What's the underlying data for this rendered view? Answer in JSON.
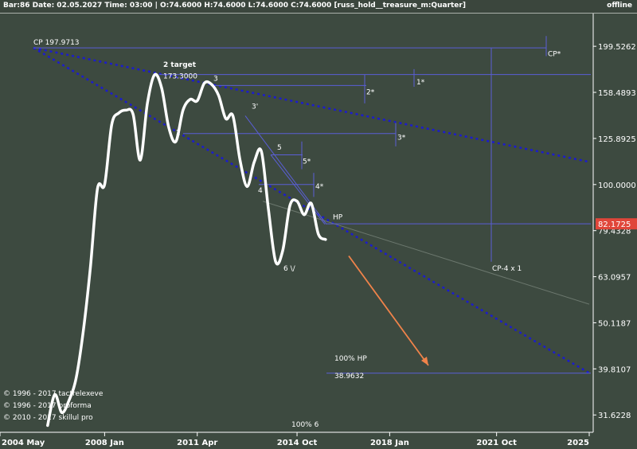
{
  "header": {
    "title": "Bar:86 Date: 02.05.2027 Time: 03:00 | O:74.6000 H:74.6000 L:74.6000 C:74.6000 [russ_hold__treasure_m:Quarter]",
    "status": "offline"
  },
  "colors": {
    "background": "#3d4a40",
    "price_line": "#ffffff",
    "dotted_trend": "#1c1ccc",
    "projection_lines": "#5a5ed6",
    "arrow": "#f0834a",
    "price_tag": "#e0463a"
  },
  "annotations": {
    "cp_label": "CP 197.9713",
    "target_label": "2 target",
    "target_value": "173.3000",
    "labels": [
      "2",
      "3",
      "3'",
      "4",
      "5",
      "4*",
      "5*",
      "6 \\/",
      "HP",
      "CP*",
      "1*",
      "2*",
      "3*",
      "CP-4 x 1"
    ],
    "hp100_label": "100% HP",
    "hp100_value": "38.9632",
    "pct6_label": "100% 6"
  },
  "price_tag": "82.1725",
  "copyright": [
    "© 1996 - 2017 tactrelexeve",
    "© 1996 - 2017 proforma",
    "© 2010 - 2017 skillul pro"
  ],
  "chart_data": {
    "type": "line",
    "title": "",
    "xlabel": "",
    "ylabel": "",
    "y_scale": "log",
    "ylim": [
      29,
      235
    ],
    "x_ticks": [
      "2004 May",
      "2008 Jan",
      "2011 Apr",
      "2014 Oct",
      "2018 Jan",
      "2021 Oct",
      "2025"
    ],
    "y_ticks": [
      "199.5262",
      "158.4893",
      "125.8925",
      "100.0000",
      "79.4328",
      "63.0957",
      "50.1187",
      "39.8107",
      "31.6228"
    ],
    "series": [
      {
        "values": [
          [
            "2006 Jan",
            30
          ],
          [
            "2006 Apr",
            35
          ],
          [
            "2006 Jul",
            32
          ],
          [
            "2006 Oct",
            34
          ],
          [
            "2007 Jan",
            38
          ],
          [
            "2007 Apr",
            48
          ],
          [
            "2007 Jul",
            66
          ],
          [
            "2007 Oct",
            98
          ],
          [
            "2008 Jan",
            100
          ],
          [
            "2008 Apr",
            135
          ],
          [
            "2008 Jul",
            143
          ],
          [
            "2008 Oct",
            145
          ],
          [
            "2009 Jan",
            142
          ],
          [
            "2009 Apr",
            113
          ],
          [
            "2009 Jul",
            150
          ],
          [
            "2009 Oct",
            173
          ],
          [
            "2010 Jan",
            162
          ],
          [
            "2010 Apr",
            133
          ],
          [
            "2010 Jul",
            124
          ],
          [
            "2010 Oct",
            145
          ],
          [
            "2011 Jan",
            153
          ],
          [
            "2011 Apr",
            152
          ],
          [
            "2011 Jul",
            166
          ],
          [
            "2011 Oct",
            165
          ],
          [
            "2012 Jan",
            156
          ],
          [
            "2012 Apr",
            139
          ],
          [
            "2012 Jul",
            141
          ],
          [
            "2012 Oct",
            113
          ],
          [
            "2013 Jan",
            99
          ],
          [
            "2013 Apr",
            112
          ],
          [
            "2013 Jul",
            118
          ],
          [
            "2013 Oct",
            88
          ],
          [
            "2014 Jan",
            68
          ],
          [
            "2014 Apr",
            72
          ],
          [
            "2014 Jul",
            90
          ],
          [
            "2014 Oct",
            92
          ],
          [
            "2015 Jan",
            86
          ],
          [
            "2015 Apr",
            91
          ],
          [
            "2015 Jul",
            78
          ],
          [
            "2015 Oct",
            76
          ]
        ]
      }
    ]
  }
}
